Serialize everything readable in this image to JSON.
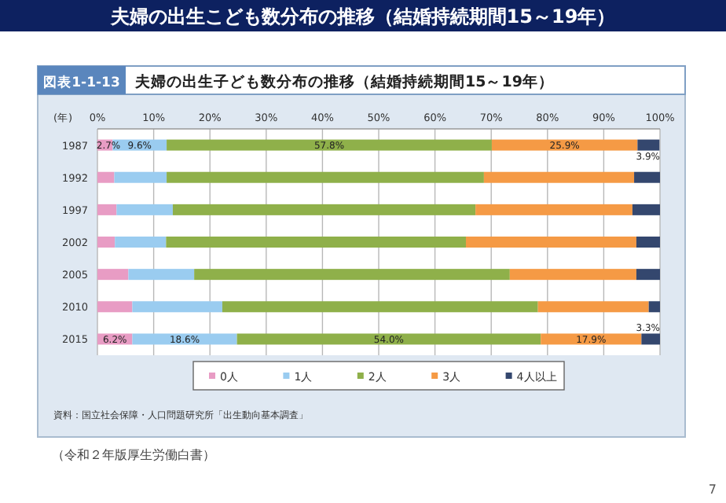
{
  "chart_data": {
    "type": "bar",
    "orientation": "horizontal",
    "stacked": true,
    "title": "夫婦の出生こども数分布の推移（結婚持続期間15～19年）",
    "subtitle": "夫婦の出生子ども数分布の推移（結婚持続期間15～19年）",
    "ylabel": "(年)",
    "annotations": [
      "図表1-1-13",
      "資料：国立社会保障・人口問題研究所「出生動向基本調査」",
      "（令和２年版厚生労働白書）",
      "7"
    ],
    "categories": [
      "1987",
      "1992",
      "1997",
      "2002",
      "2005",
      "2010",
      "2015"
    ],
    "xlim": [
      0,
      100
    ],
    "xticks": [
      {
        "value": 0,
        "label": "0%"
      },
      {
        "value": 10,
        "label": "10%"
      },
      {
        "value": 20,
        "label": "20%"
      },
      {
        "value": 30,
        "label": "30%"
      },
      {
        "value": 40,
        "label": "40%"
      },
      {
        "value": 50,
        "label": "50%"
      },
      {
        "value": 60,
        "label": "60%"
      },
      {
        "value": 70,
        "label": "70%"
      },
      {
        "value": 80,
        "label": "80%"
      },
      {
        "value": 90,
        "label": "90%"
      },
      {
        "value": 100,
        "label": "100%"
      }
    ],
    "grid": "x",
    "legend": "bottom",
    "series": [
      {
        "name": "0人",
        "color": "#e89cc4",
        "values": [
          2.7,
          3.0,
          3.4,
          3.1,
          5.5,
          6.2,
          6.2
        ],
        "value_labels": [
          "2.7%",
          null,
          null,
          null,
          null,
          null,
          "6.2%"
        ]
      },
      {
        "name": "1人",
        "color": "#9accf0",
        "values": [
          9.6,
          9.3,
          10.0,
          9.1,
          11.7,
          16.0,
          18.6
        ],
        "value_labels": [
          "9.6%",
          null,
          null,
          null,
          null,
          null,
          "18.6%"
        ]
      },
      {
        "name": "2人",
        "color": "#8fb04a",
        "values": [
          57.8,
          56.4,
          53.8,
          53.3,
          56.1,
          56.1,
          54.0
        ],
        "value_labels": [
          "57.8%",
          null,
          null,
          null,
          null,
          null,
          "54.0%"
        ]
      },
      {
        "name": "3人",
        "color": "#f59a45",
        "values": [
          25.9,
          26.7,
          27.9,
          30.3,
          22.5,
          19.7,
          17.9
        ],
        "value_labels": [
          "25.9%",
          null,
          null,
          null,
          null,
          null,
          "17.9%"
        ]
      },
      {
        "name": "4人以上",
        "color": "#34476e",
        "values": [
          3.9,
          4.6,
          4.9,
          4.2,
          4.2,
          2.0,
          3.3
        ],
        "value_labels": [
          "3.9%",
          null,
          null,
          null,
          null,
          null,
          "3.3%"
        ]
      }
    ]
  }
}
